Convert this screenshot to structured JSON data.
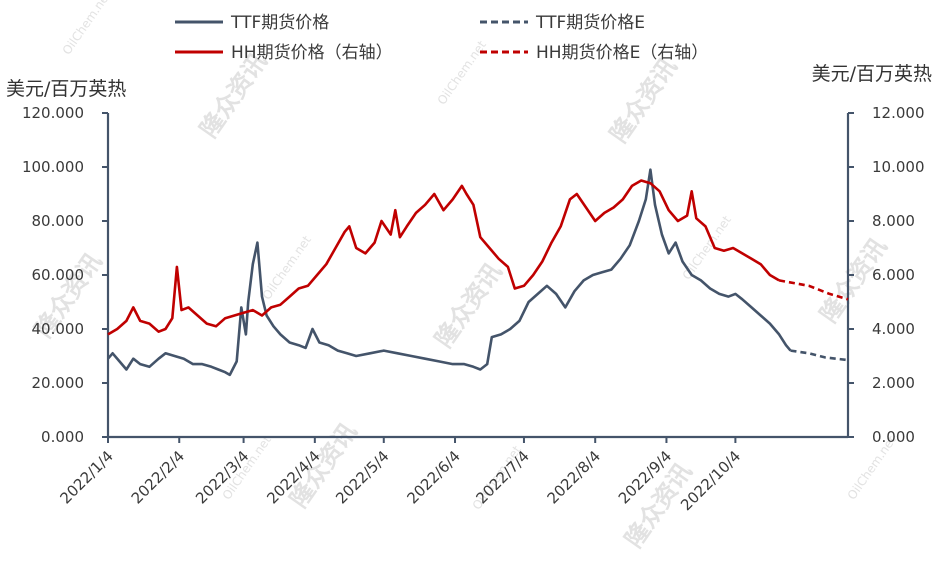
{
  "chart_data": {
    "type": "line",
    "y_left_unit": "美元/百万英热",
    "y_right_unit": "美元/百万英热",
    "y_left_ticks": [
      "0.000",
      "20.000",
      "40.000",
      "60.000",
      "80.000",
      "100.000",
      "120.000"
    ],
    "y_right_ticks": [
      "0.000",
      "2.000",
      "4.000",
      "6.000",
      "8.000",
      "10.000",
      "12.000"
    ],
    "ylim_left": [
      0,
      120
    ],
    "ylim_right": [
      0,
      12
    ],
    "x_tick_labels": [
      "2022/1/4",
      "2022/2/4",
      "2022/3/4",
      "2022/4/4",
      "2022/5/4",
      "2022/6/4",
      "2022/7/4",
      "2022/8/4",
      "2022/9/4",
      "2022/10/4"
    ],
    "xlim": [
      "2022-01-04",
      "2022-11-22"
    ],
    "grid": false,
    "legend_position": "top",
    "watermarks": [
      "隆众资讯",
      "OilChem.net"
    ],
    "series": [
      {
        "name": "TTF期货价格",
        "axis": "left",
        "style": "solid",
        "color": "#44546a",
        "points": [
          [
            "2022-01-04",
            29
          ],
          [
            "2022-01-06",
            31
          ],
          [
            "2022-01-09",
            28
          ],
          [
            "2022-01-12",
            25
          ],
          [
            "2022-01-15",
            29
          ],
          [
            "2022-01-18",
            27
          ],
          [
            "2022-01-22",
            26
          ],
          [
            "2022-01-26",
            29
          ],
          [
            "2022-01-29",
            31
          ],
          [
            "2022-02-02",
            30
          ],
          [
            "2022-02-06",
            29
          ],
          [
            "2022-02-10",
            27
          ],
          [
            "2022-02-14",
            27
          ],
          [
            "2022-02-18",
            26
          ],
          [
            "2022-02-21",
            25
          ],
          [
            "2022-02-24",
            24
          ],
          [
            "2022-02-26",
            23
          ],
          [
            "2022-03-01",
            28
          ],
          [
            "2022-03-03",
            48
          ],
          [
            "2022-03-05",
            38
          ],
          [
            "2022-03-06",
            50
          ],
          [
            "2022-03-08",
            64
          ],
          [
            "2022-03-10",
            72
          ],
          [
            "2022-03-12",
            52
          ],
          [
            "2022-03-14",
            45
          ],
          [
            "2022-03-17",
            41
          ],
          [
            "2022-03-20",
            38
          ],
          [
            "2022-03-24",
            35
          ],
          [
            "2022-03-28",
            34
          ],
          [
            "2022-03-31",
            33
          ],
          [
            "2022-04-03",
            40
          ],
          [
            "2022-04-06",
            35
          ],
          [
            "2022-04-10",
            34
          ],
          [
            "2022-04-14",
            32
          ],
          [
            "2022-04-18",
            31
          ],
          [
            "2022-04-22",
            30
          ],
          [
            "2022-04-28",
            31
          ],
          [
            "2022-05-04",
            32
          ],
          [
            "2022-05-10",
            31
          ],
          [
            "2022-05-16",
            30
          ],
          [
            "2022-05-22",
            29
          ],
          [
            "2022-05-28",
            28
          ],
          [
            "2022-06-03",
            27
          ],
          [
            "2022-06-08",
            27
          ],
          [
            "2022-06-12",
            26
          ],
          [
            "2022-06-15",
            25
          ],
          [
            "2022-06-18",
            27
          ],
          [
            "2022-06-20",
            37
          ],
          [
            "2022-06-24",
            38
          ],
          [
            "2022-06-28",
            40
          ],
          [
            "2022-07-02",
            43
          ],
          [
            "2022-07-06",
            50
          ],
          [
            "2022-07-10",
            53
          ],
          [
            "2022-07-14",
            56
          ],
          [
            "2022-07-18",
            53
          ],
          [
            "2022-07-22",
            48
          ],
          [
            "2022-07-26",
            54
          ],
          [
            "2022-07-30",
            58
          ],
          [
            "2022-08-03",
            60
          ],
          [
            "2022-08-07",
            61
          ],
          [
            "2022-08-11",
            62
          ],
          [
            "2022-08-15",
            66
          ],
          [
            "2022-08-19",
            71
          ],
          [
            "2022-08-23",
            80
          ],
          [
            "2022-08-26",
            88
          ],
          [
            "2022-08-28",
            99
          ],
          [
            "2022-08-30",
            86
          ],
          [
            "2022-09-02",
            75
          ],
          [
            "2022-09-05",
            68
          ],
          [
            "2022-09-08",
            72
          ],
          [
            "2022-09-11",
            65
          ],
          [
            "2022-09-15",
            60
          ],
          [
            "2022-09-19",
            58
          ],
          [
            "2022-09-23",
            55
          ],
          [
            "2022-09-27",
            53
          ],
          [
            "2022-10-01",
            52
          ],
          [
            "2022-10-04",
            53
          ],
          [
            "2022-10-07",
            51
          ],
          [
            "2022-10-11",
            48
          ],
          [
            "2022-10-15",
            45
          ],
          [
            "2022-10-19",
            42
          ],
          [
            "2022-10-23",
            38
          ],
          [
            "2022-10-26",
            34
          ],
          [
            "2022-10-28",
            32
          ]
        ]
      },
      {
        "name": "TTF期货价格E",
        "axis": "left",
        "style": "dashed",
        "color": "#44546a",
        "points": [
          [
            "2022-10-28",
            32
          ],
          [
            "2022-11-05",
            31
          ],
          [
            "2022-11-12",
            29.5
          ],
          [
            "2022-11-22",
            28.5
          ]
        ]
      },
      {
        "name": "HH期货价格（右轴）",
        "axis": "right",
        "style": "solid",
        "color": "#c00000",
        "points": [
          [
            "2022-01-04",
            3.8
          ],
          [
            "2022-01-08",
            4.0
          ],
          [
            "2022-01-12",
            4.3
          ],
          [
            "2022-01-15",
            4.8
          ],
          [
            "2022-01-18",
            4.3
          ],
          [
            "2022-01-22",
            4.2
          ],
          [
            "2022-01-26",
            3.9
          ],
          [
            "2022-01-29",
            4.0
          ],
          [
            "2022-02-01",
            4.4
          ],
          [
            "2022-02-03",
            6.3
          ],
          [
            "2022-02-05",
            4.7
          ],
          [
            "2022-02-08",
            4.8
          ],
          [
            "2022-02-12",
            4.5
          ],
          [
            "2022-02-16",
            4.2
          ],
          [
            "2022-02-20",
            4.1
          ],
          [
            "2022-02-24",
            4.4
          ],
          [
            "2022-02-28",
            4.5
          ],
          [
            "2022-03-04",
            4.6
          ],
          [
            "2022-03-08",
            4.7
          ],
          [
            "2022-03-12",
            4.5
          ],
          [
            "2022-03-16",
            4.8
          ],
          [
            "2022-03-20",
            4.9
          ],
          [
            "2022-03-24",
            5.2
          ],
          [
            "2022-03-28",
            5.5
          ],
          [
            "2022-04-01",
            5.6
          ],
          [
            "2022-04-05",
            6.0
          ],
          [
            "2022-04-09",
            6.4
          ],
          [
            "2022-04-13",
            7.0
          ],
          [
            "2022-04-17",
            7.6
          ],
          [
            "2022-04-19",
            7.8
          ],
          [
            "2022-04-22",
            7.0
          ],
          [
            "2022-04-26",
            6.8
          ],
          [
            "2022-04-30",
            7.2
          ],
          [
            "2022-05-03",
            8.0
          ],
          [
            "2022-05-07",
            7.5
          ],
          [
            "2022-05-09",
            8.4
          ],
          [
            "2022-05-11",
            7.4
          ],
          [
            "2022-05-14",
            7.8
          ],
          [
            "2022-05-18",
            8.3
          ],
          [
            "2022-05-22",
            8.6
          ],
          [
            "2022-05-26",
            9.0
          ],
          [
            "2022-05-30",
            8.4
          ],
          [
            "2022-06-03",
            8.8
          ],
          [
            "2022-06-07",
            9.3
          ],
          [
            "2022-06-09",
            9.0
          ],
          [
            "2022-06-12",
            8.6
          ],
          [
            "2022-06-15",
            7.4
          ],
          [
            "2022-06-19",
            7.0
          ],
          [
            "2022-06-23",
            6.6
          ],
          [
            "2022-06-27",
            6.3
          ],
          [
            "2022-06-30",
            5.5
          ],
          [
            "2022-07-04",
            5.6
          ],
          [
            "2022-07-08",
            6.0
          ],
          [
            "2022-07-12",
            6.5
          ],
          [
            "2022-07-16",
            7.2
          ],
          [
            "2022-07-20",
            7.8
          ],
          [
            "2022-07-24",
            8.8
          ],
          [
            "2022-07-27",
            9.0
          ],
          [
            "2022-07-31",
            8.5
          ],
          [
            "2022-08-04",
            8.0
          ],
          [
            "2022-08-08",
            8.3
          ],
          [
            "2022-08-12",
            8.5
          ],
          [
            "2022-08-16",
            8.8
          ],
          [
            "2022-08-20",
            9.3
          ],
          [
            "2022-08-24",
            9.5
          ],
          [
            "2022-08-28",
            9.4
          ],
          [
            "2022-09-01",
            9.1
          ],
          [
            "2022-09-05",
            8.4
          ],
          [
            "2022-09-09",
            8.0
          ],
          [
            "2022-09-13",
            8.2
          ],
          [
            "2022-09-15",
            9.1
          ],
          [
            "2022-09-17",
            8.1
          ],
          [
            "2022-09-21",
            7.8
          ],
          [
            "2022-09-25",
            7.0
          ],
          [
            "2022-09-29",
            6.9
          ],
          [
            "2022-10-03",
            7.0
          ],
          [
            "2022-10-07",
            6.8
          ],
          [
            "2022-10-11",
            6.6
          ],
          [
            "2022-10-15",
            6.4
          ],
          [
            "2022-10-19",
            6.0
          ],
          [
            "2022-10-23",
            5.8
          ]
        ]
      },
      {
        "name": "HH期货价格E（右轴）",
        "axis": "right",
        "style": "dashed",
        "color": "#c00000",
        "points": [
          [
            "2022-10-23",
            5.8
          ],
          [
            "2022-11-05",
            5.6
          ],
          [
            "2022-11-14",
            5.3
          ],
          [
            "2022-11-22",
            5.1
          ]
        ]
      }
    ]
  }
}
